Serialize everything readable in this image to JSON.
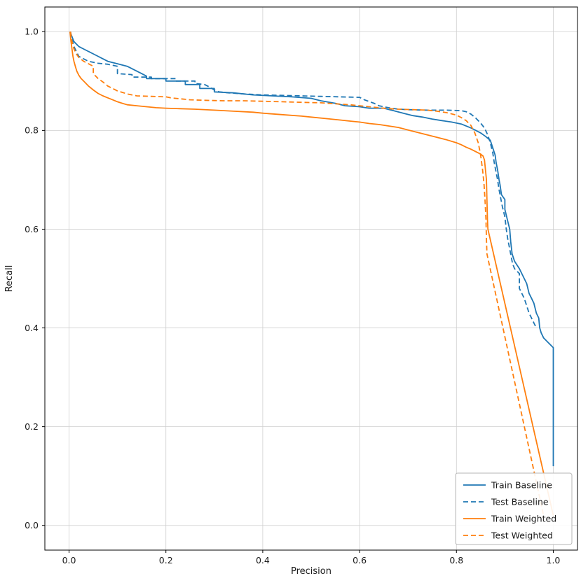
{
  "figure": {
    "background": "#ffffff",
    "axes_edge_color": "#000000",
    "grid_color": "#cfcfcf",
    "text_color": "#1a1a1a"
  },
  "chart_data": {
    "type": "line",
    "title": "",
    "xlabel": "Precision",
    "ylabel": "Recall",
    "xlim": [
      -0.05,
      1.05
    ],
    "ylim": [
      -0.05,
      1.05
    ],
    "xticks": [
      0.0,
      0.2,
      0.4,
      0.6,
      0.8,
      1.0
    ],
    "yticks": [
      0.0,
      0.2,
      0.4,
      0.6,
      0.8,
      1.0
    ],
    "xtick_labels": [
      "0.0",
      "0.2",
      "0.4",
      "0.6",
      "0.8",
      "1.0"
    ],
    "ytick_labels": [
      "0.0",
      "0.2",
      "0.4",
      "0.6",
      "0.8",
      "1.0"
    ],
    "grid": true,
    "legend_position": "lower right",
    "series": [
      {
        "name": "Train Baseline",
        "color": "#1f77b4",
        "style": "solid",
        "points": [
          [
            0.002,
            1.0
          ],
          [
            0.004,
            0.995
          ],
          [
            0.006,
            0.99
          ],
          [
            0.008,
            0.985
          ],
          [
            0.01,
            0.98
          ],
          [
            0.015,
            0.975
          ],
          [
            0.02,
            0.97
          ],
          [
            0.03,
            0.965
          ],
          [
            0.04,
            0.96
          ],
          [
            0.05,
            0.955
          ],
          [
            0.06,
            0.95
          ],
          [
            0.07,
            0.945
          ],
          [
            0.08,
            0.94
          ],
          [
            0.1,
            0.935
          ],
          [
            0.12,
            0.93
          ],
          [
            0.13,
            0.925
          ],
          [
            0.14,
            0.92
          ],
          [
            0.15,
            0.915
          ],
          [
            0.16,
            0.91
          ],
          [
            0.16,
            0.905
          ],
          [
            0.2,
            0.905
          ],
          [
            0.2,
            0.9
          ],
          [
            0.24,
            0.9
          ],
          [
            0.24,
            0.893
          ],
          [
            0.27,
            0.893
          ],
          [
            0.27,
            0.885
          ],
          [
            0.3,
            0.885
          ],
          [
            0.3,
            0.878
          ],
          [
            0.34,
            0.876
          ],
          [
            0.38,
            0.872
          ],
          [
            0.42,
            0.87
          ],
          [
            0.46,
            0.868
          ],
          [
            0.5,
            0.865
          ],
          [
            0.52,
            0.86
          ],
          [
            0.55,
            0.855
          ],
          [
            0.57,
            0.85
          ],
          [
            0.6,
            0.848
          ],
          [
            0.62,
            0.845
          ],
          [
            0.65,
            0.845
          ],
          [
            0.67,
            0.84
          ],
          [
            0.69,
            0.835
          ],
          [
            0.71,
            0.83
          ],
          [
            0.73,
            0.827
          ],
          [
            0.75,
            0.823
          ],
          [
            0.77,
            0.82
          ],
          [
            0.79,
            0.817
          ],
          [
            0.81,
            0.813
          ],
          [
            0.83,
            0.805
          ],
          [
            0.85,
            0.795
          ],
          [
            0.86,
            0.788
          ],
          [
            0.87,
            0.78
          ],
          [
            0.875,
            0.765
          ],
          [
            0.88,
            0.75
          ],
          [
            0.882,
            0.735
          ],
          [
            0.885,
            0.72
          ],
          [
            0.888,
            0.7
          ],
          [
            0.89,
            0.69
          ],
          [
            0.893,
            0.67
          ],
          [
            0.9,
            0.66
          ],
          [
            0.9,
            0.64
          ],
          [
            0.905,
            0.62
          ],
          [
            0.91,
            0.6
          ],
          [
            0.912,
            0.575
          ],
          [
            0.915,
            0.55
          ],
          [
            0.92,
            0.535
          ],
          [
            0.93,
            0.52
          ],
          [
            0.935,
            0.51
          ],
          [
            0.94,
            0.5
          ],
          [
            0.945,
            0.49
          ],
          [
            0.95,
            0.47
          ],
          [
            0.955,
            0.46
          ],
          [
            0.96,
            0.45
          ],
          [
            0.965,
            0.43
          ],
          [
            0.97,
            0.42
          ],
          [
            0.972,
            0.4
          ],
          [
            0.975,
            0.39
          ],
          [
            0.98,
            0.38
          ],
          [
            0.99,
            0.37
          ],
          [
            1.0,
            0.36
          ],
          [
            1.0,
            0.12
          ]
        ]
      },
      {
        "name": "Test Baseline",
        "color": "#1f77b4",
        "style": "dashed",
        "points": [
          [
            0.003,
            1.0
          ],
          [
            0.006,
            0.985
          ],
          [
            0.01,
            0.97
          ],
          [
            0.015,
            0.96
          ],
          [
            0.02,
            0.95
          ],
          [
            0.03,
            0.945
          ],
          [
            0.04,
            0.94
          ],
          [
            0.05,
            0.938
          ],
          [
            0.06,
            0.936
          ],
          [
            0.08,
            0.934
          ],
          [
            0.1,
            0.93
          ],
          [
            0.1,
            0.915
          ],
          [
            0.13,
            0.913
          ],
          [
            0.13,
            0.908
          ],
          [
            0.17,
            0.908
          ],
          [
            0.17,
            0.905
          ],
          [
            0.22,
            0.905
          ],
          [
            0.22,
            0.9
          ],
          [
            0.26,
            0.9
          ],
          [
            0.26,
            0.895
          ],
          [
            0.28,
            0.893
          ],
          [
            0.29,
            0.888
          ],
          [
            0.3,
            0.882
          ],
          [
            0.31,
            0.878
          ],
          [
            0.33,
            0.876
          ],
          [
            0.36,
            0.874
          ],
          [
            0.4,
            0.872
          ],
          [
            0.44,
            0.871
          ],
          [
            0.48,
            0.87
          ],
          [
            0.52,
            0.869
          ],
          [
            0.56,
            0.868
          ],
          [
            0.6,
            0.867
          ],
          [
            0.61,
            0.862
          ],
          [
            0.63,
            0.855
          ],
          [
            0.64,
            0.85
          ],
          [
            0.66,
            0.846
          ],
          [
            0.68,
            0.843
          ],
          [
            0.7,
            0.842
          ],
          [
            0.74,
            0.841
          ],
          [
            0.78,
            0.841
          ],
          [
            0.81,
            0.84
          ],
          [
            0.82,
            0.838
          ],
          [
            0.83,
            0.833
          ],
          [
            0.84,
            0.825
          ],
          [
            0.85,
            0.815
          ],
          [
            0.858,
            0.805
          ],
          [
            0.865,
            0.79
          ],
          [
            0.87,
            0.775
          ],
          [
            0.875,
            0.755
          ],
          [
            0.878,
            0.735
          ],
          [
            0.882,
            0.715
          ],
          [
            0.885,
            0.7
          ],
          [
            0.888,
            0.68
          ],
          [
            0.892,
            0.66
          ],
          [
            0.895,
            0.645
          ],
          [
            0.9,
            0.625
          ],
          [
            0.903,
            0.6
          ],
          [
            0.906,
            0.58
          ],
          [
            0.91,
            0.56
          ],
          [
            0.913,
            0.545
          ],
          [
            0.916,
            0.53
          ],
          [
            0.92,
            0.52
          ],
          [
            0.925,
            0.515
          ],
          [
            0.93,
            0.51
          ],
          [
            0.93,
            0.48
          ],
          [
            0.94,
            0.46
          ],
          [
            0.945,
            0.445
          ],
          [
            0.95,
            0.43
          ],
          [
            0.955,
            0.42
          ],
          [
            0.96,
            0.41
          ],
          [
            0.965,
            0.4
          ]
        ]
      },
      {
        "name": "Train Weighted",
        "color": "#ff7f0e",
        "style": "solid",
        "points": [
          [
            0.002,
            1.0
          ],
          [
            0.004,
            0.98
          ],
          [
            0.006,
            0.965
          ],
          [
            0.008,
            0.95
          ],
          [
            0.01,
            0.94
          ],
          [
            0.013,
            0.93
          ],
          [
            0.016,
            0.92
          ],
          [
            0.02,
            0.912
          ],
          [
            0.025,
            0.905
          ],
          [
            0.03,
            0.9
          ],
          [
            0.035,
            0.895
          ],
          [
            0.04,
            0.89
          ],
          [
            0.05,
            0.882
          ],
          [
            0.06,
            0.875
          ],
          [
            0.07,
            0.87
          ],
          [
            0.08,
            0.866
          ],
          [
            0.09,
            0.862
          ],
          [
            0.1,
            0.858
          ],
          [
            0.11,
            0.855
          ],
          [
            0.12,
            0.852
          ],
          [
            0.14,
            0.85
          ],
          [
            0.16,
            0.848
          ],
          [
            0.18,
            0.846
          ],
          [
            0.2,
            0.845
          ],
          [
            0.23,
            0.844
          ],
          [
            0.26,
            0.843
          ],
          [
            0.3,
            0.841
          ],
          [
            0.34,
            0.839
          ],
          [
            0.38,
            0.837
          ],
          [
            0.4,
            0.835
          ],
          [
            0.44,
            0.832
          ],
          [
            0.48,
            0.829
          ],
          [
            0.5,
            0.827
          ],
          [
            0.53,
            0.824
          ],
          [
            0.56,
            0.821
          ],
          [
            0.58,
            0.819
          ],
          [
            0.6,
            0.817
          ],
          [
            0.62,
            0.814
          ],
          [
            0.64,
            0.812
          ],
          [
            0.66,
            0.809
          ],
          [
            0.68,
            0.806
          ],
          [
            0.7,
            0.801
          ],
          [
            0.72,
            0.796
          ],
          [
            0.74,
            0.791
          ],
          [
            0.76,
            0.786
          ],
          [
            0.78,
            0.781
          ],
          [
            0.8,
            0.775
          ],
          [
            0.81,
            0.771
          ],
          [
            0.82,
            0.766
          ],
          [
            0.83,
            0.762
          ],
          [
            0.84,
            0.757
          ],
          [
            0.85,
            0.752
          ],
          [
            0.855,
            0.748
          ],
          [
            0.858,
            0.74
          ],
          [
            0.86,
            0.72
          ],
          [
            0.862,
            0.7
          ],
          [
            0.863,
            0.66
          ],
          [
            0.864,
            0.62
          ],
          [
            0.865,
            0.6
          ],
          [
            1.0,
            0.02
          ]
        ]
      },
      {
        "name": "Test Weighted",
        "color": "#ff7f0e",
        "style": "dashed",
        "points": [
          [
            0.003,
            1.0
          ],
          [
            0.006,
            0.98
          ],
          [
            0.01,
            0.965
          ],
          [
            0.015,
            0.955
          ],
          [
            0.02,
            0.948
          ],
          [
            0.03,
            0.94
          ],
          [
            0.04,
            0.935
          ],
          [
            0.05,
            0.93
          ],
          [
            0.05,
            0.915
          ],
          [
            0.06,
            0.905
          ],
          [
            0.07,
            0.898
          ],
          [
            0.08,
            0.89
          ],
          [
            0.09,
            0.885
          ],
          [
            0.1,
            0.88
          ],
          [
            0.11,
            0.877
          ],
          [
            0.12,
            0.874
          ],
          [
            0.13,
            0.872
          ],
          [
            0.14,
            0.87
          ],
          [
            0.17,
            0.869
          ],
          [
            0.2,
            0.868
          ],
          [
            0.21,
            0.866
          ],
          [
            0.23,
            0.864
          ],
          [
            0.25,
            0.862
          ],
          [
            0.28,
            0.861
          ],
          [
            0.32,
            0.86
          ],
          [
            0.36,
            0.86
          ],
          [
            0.4,
            0.859
          ],
          [
            0.44,
            0.858
          ],
          [
            0.48,
            0.857
          ],
          [
            0.52,
            0.856
          ],
          [
            0.55,
            0.854
          ],
          [
            0.58,
            0.852
          ],
          [
            0.6,
            0.85
          ],
          [
            0.62,
            0.848
          ],
          [
            0.64,
            0.846
          ],
          [
            0.66,
            0.844
          ],
          [
            0.68,
            0.843
          ],
          [
            0.71,
            0.842
          ],
          [
            0.74,
            0.841
          ],
          [
            0.76,
            0.839
          ],
          [
            0.78,
            0.836
          ],
          [
            0.8,
            0.831
          ],
          [
            0.81,
            0.826
          ],
          [
            0.82,
            0.82
          ],
          [
            0.83,
            0.81
          ],
          [
            0.838,
            0.795
          ],
          [
            0.845,
            0.775
          ],
          [
            0.85,
            0.75
          ],
          [
            0.854,
            0.72
          ],
          [
            0.857,
            0.69
          ],
          [
            0.859,
            0.66
          ],
          [
            0.861,
            0.62
          ],
          [
            0.862,
            0.58
          ],
          [
            0.863,
            0.55
          ],
          [
            0.98,
            0.02
          ]
        ]
      }
    ]
  }
}
